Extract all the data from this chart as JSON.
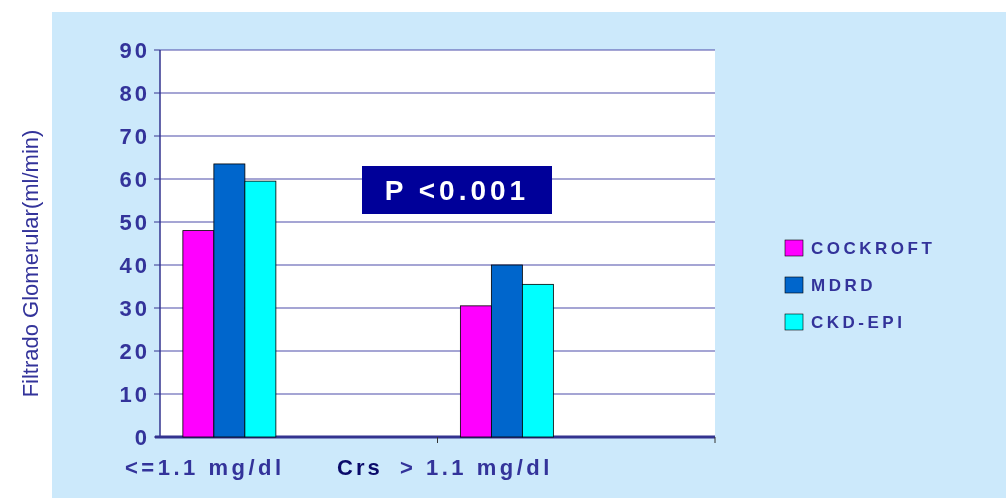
{
  "chart_data": {
    "type": "bar",
    "ylabel": "Filtrado Glomerular(ml/min)",
    "xlabel": "Crs",
    "categories": [
      "<=1.1 mg/dl",
      "> 1.1 mg/dl"
    ],
    "series": [
      {
        "name": "COCKROFT",
        "color": "#ff00ff",
        "values": [
          48,
          30.5
        ]
      },
      {
        "name": "MDRD",
        "color": "#0066cc",
        "values": [
          63.5,
          40
        ]
      },
      {
        "name": "CKD-EPI",
        "color": "#00ffff",
        "values": [
          59.5,
          35.5
        ]
      }
    ],
    "ylim": [
      0,
      90
    ],
    "yticks": [
      0,
      10,
      20,
      30,
      40,
      50,
      60,
      70,
      80,
      90
    ],
    "grid": "y",
    "legend": "right",
    "annotations": [
      "P <0.001"
    ]
  }
}
